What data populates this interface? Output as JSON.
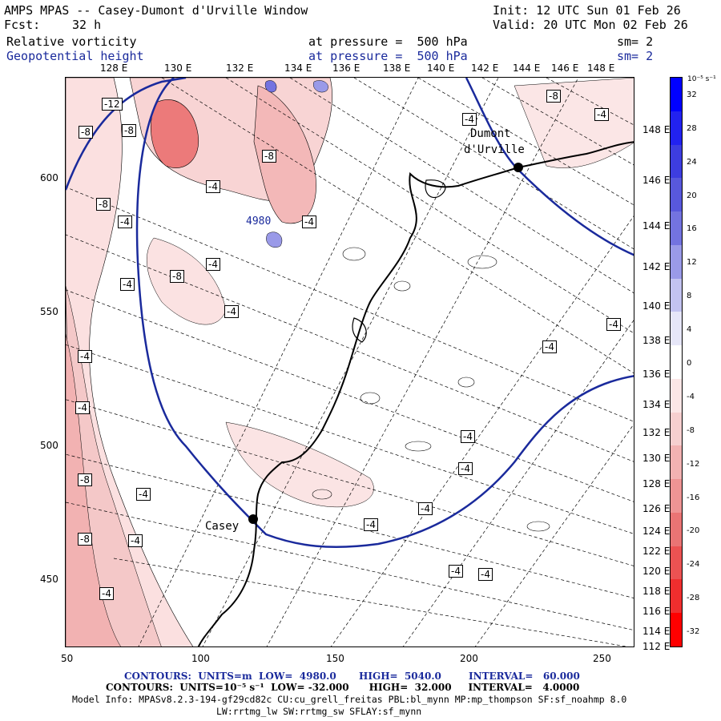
{
  "header": {
    "title": "AMPS MPAS -- Casey-Dumont d'Urville Window",
    "init": "Init: 12 UTC Sun 01 Feb 26",
    "fcst_label": "Fcst:",
    "fcst_value": "32 h",
    "valid": "Valid: 20 UTC Mon 02 Feb 26",
    "field1_name": "Relative vorticity",
    "field1_level": "at pressure =  500 hPa",
    "field1_sm": "sm= 2",
    "field2_name": "Geopotential height",
    "field2_level": "at pressure =  500 hPa",
    "field2_sm": "sm= 2"
  },
  "map": {
    "top_lon_labels": [
      "128 E",
      "130 E",
      "132 E",
      "134 E",
      "136 E",
      "138 E",
      "140 E",
      "142 E",
      "144 E",
      "146 E",
      "148 E"
    ],
    "right_lon_labels": [
      "148 E",
      "146 E",
      "144 E",
      "142 E",
      "140 E",
      "138 E",
      "136 E",
      "134 E",
      "132 E",
      "130 E",
      "128 E",
      "126 E",
      "124 E",
      "122 E",
      "120 E",
      "118 E",
      "116 E",
      "114 E",
      "112 E"
    ],
    "y_ticks": [
      "600",
      "550",
      "500",
      "450"
    ],
    "x_ticks": [
      "50",
      "100",
      "150",
      "200",
      "250"
    ],
    "stations": [
      {
        "name": "Dumont",
        "name2": "d'Urville"
      },
      {
        "name": "Casey"
      }
    ],
    "height_label": "4980",
    "vorticity_labels": [
      "-12",
      "-8",
      "-8",
      "-4",
      "-8",
      "-4",
      "-8",
      "-4",
      "-8",
      "-4",
      "-4",
      "-4",
      "-4",
      "-4",
      "-8",
      "-4",
      "-8",
      "-4",
      "-4",
      "-8",
      "-4",
      "-4",
      "-4",
      "-4",
      "-4",
      "-4",
      "-4",
      "-4",
      "-4",
      "-4"
    ],
    "colors": {
      "height_contour": "#1a2a9c",
      "coast": "#000000"
    }
  },
  "colorbar": {
    "unit_label": "10⁻⁵ s⁻¹",
    "labels": [
      "32",
      "28",
      "24",
      "20",
      "16",
      "12",
      "8",
      "4",
      "0",
      "-4",
      "-8",
      "-12",
      "-16",
      "-20",
      "-24",
      "-28",
      "-32"
    ],
    "colors": [
      "#0000ff",
      "#2222f0",
      "#3d3de0",
      "#5858dc",
      "#7373e0",
      "#9a9ae8",
      "#c3c3f0",
      "#e6e6f8",
      "#ffffff",
      "#fbe6e6",
      "#f6cfcf",
      "#f2b2b2",
      "#ee9494",
      "#ea7474",
      "#ec5252",
      "#f02e2e",
      "#ff0000"
    ]
  },
  "footer": {
    "line1_a": "CONTOURS:  UNITS=m  LOW=  4980.0",
    "line1_b": "HIGH=  5040.0",
    "line1_c": "INTERVAL=   60.000",
    "line2": "CONTOURS:  UNITS=10⁻⁵ s⁻¹  LOW= -32.000      HIGH=  32.000     INTERVAL=   4.0000",
    "line3": "Model Info: MPASv8.2.3-194-gf29cd82c CU:cu_grell_freitas PBL:bl_mynn MP:mp_thompson SF:sf_noahmp 8.0",
    "line4": "LW:rrtmg_lw SW:rrtmg_sw SFLAY:sf_mynn"
  }
}
